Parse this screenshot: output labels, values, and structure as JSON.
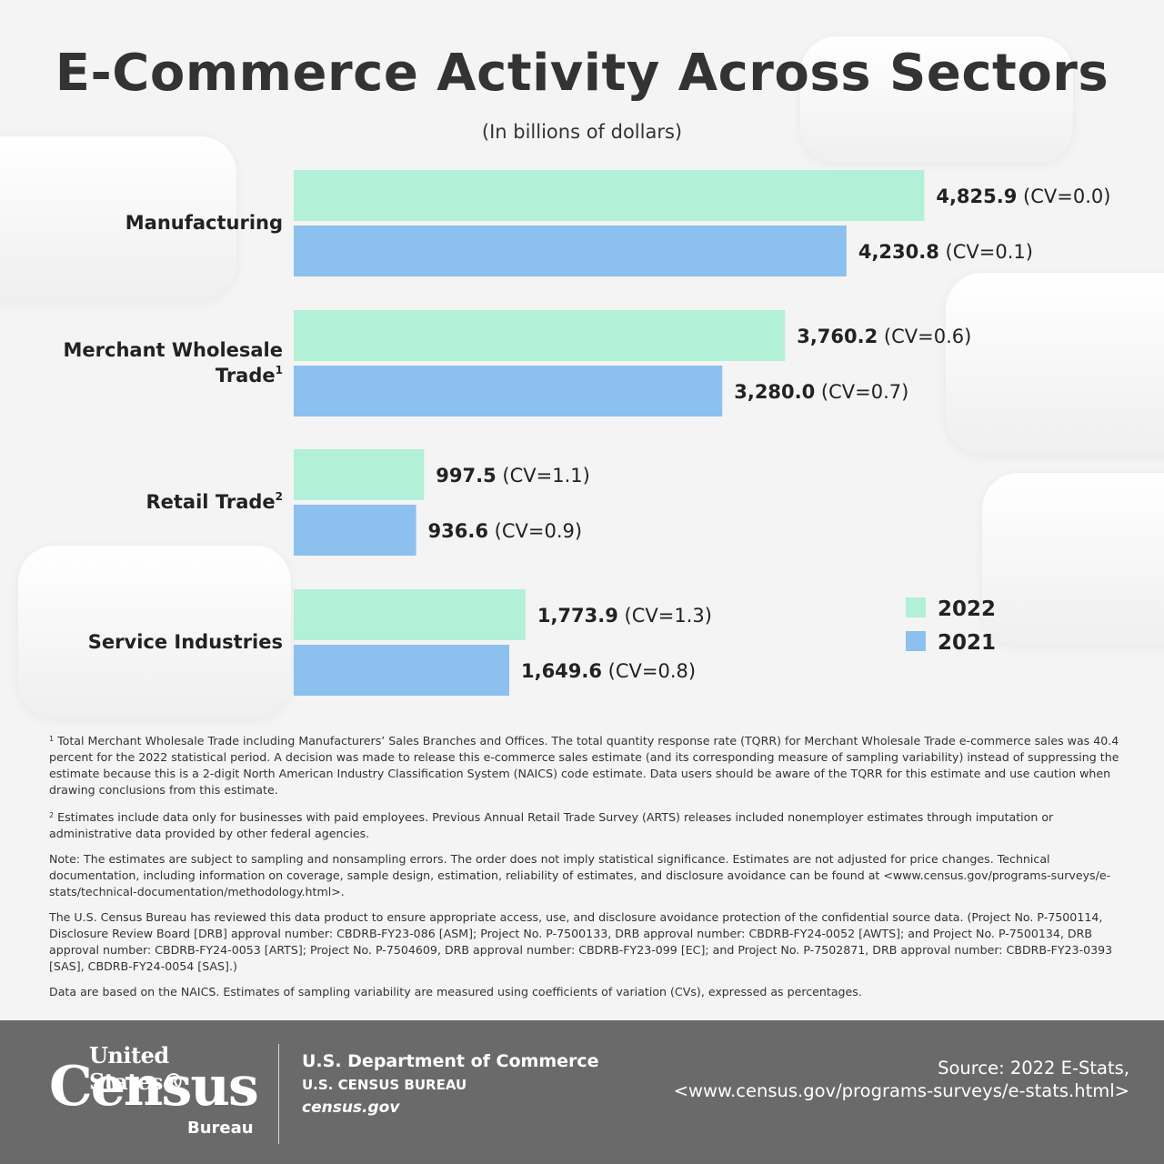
{
  "title": "E-Commerce Activity Across Sectors",
  "subtitle": "(In billions of dollars)",
  "chart_data": {
    "type": "bar",
    "orientation": "horizontal",
    "title": "E-Commerce Activity Across Sectors",
    "subtitle": "(In billions of dollars)",
    "categories": [
      "Manufacturing",
      "Merchant Wholesale Trade",
      "Retail Trade",
      "Service Industries"
    ],
    "category_lines": [
      [
        "Manufacturing"
      ],
      [
        "Merchant Wholesale",
        "Trade"
      ],
      [
        "Retail Trade"
      ],
      [
        "Service Industries"
      ]
    ],
    "category_sup": [
      "",
      "1",
      "2",
      ""
    ],
    "series": [
      {
        "name": "2022",
        "color": "#b3f0d8",
        "values": [
          4825.9,
          3760.2,
          997.5,
          1773.9
        ],
        "labels": [
          "4,825.9",
          "3,760.2",
          "997.5",
          "1,773.9"
        ],
        "cv": [
          "(CV=0.0)",
          "(CV=0.6)",
          "(CV=1.1)",
          "(CV=1.3)"
        ]
      },
      {
        "name": "2021",
        "color": "#8cc0ee",
        "values": [
          4230.8,
          3280.0,
          936.6,
          1649.6
        ],
        "labels": [
          "4,230.8",
          "3,280.0",
          "936.6",
          "1,649.6"
        ],
        "cv": [
          "(CV=0.1)",
          "(CV=0.7)",
          "(CV=0.9)",
          "(CV=0.8)"
        ]
      }
    ],
    "legend_position": "right",
    "grid": false
  },
  "notes": {
    "n1_mark": "1",
    "n1": "Total Merchant Wholesale Trade including Manufacturers’ Sales Branches and Offices. The total quantity response rate (TQRR) for Merchant Wholesale Trade e-commerce sales was 40.4 percent for the 2022 statistical period. A decision was made to release this e-commerce sales estimate (and its corresponding measure of sampling variability) instead of suppressing the estimate because this is a 2-digit North American Industry Classification System (NAICS) code estimate. Data users should be aware of the TQRR for this estimate and use caution when drawing conclusions from this estimate.",
    "n2_mark": "2",
    "n2": "Estimates include data only for businesses with paid employees. Previous Annual Retail Trade Survey (ARTS) releases included nonemployer estimates through imputation or administrative data provided by other federal agencies.",
    "n3": "Note: The estimates are subject to sampling and nonsampling errors. The order does not imply statistical significance. Estimates are not adjusted for price changes. Technical documentation, including information on coverage, sample design, estimation, reliability of estimates, and disclosure avoidance can be found at <www.census.gov/programs-surveys/e-stats/technical-documentation/methodology.html>.",
    "n4": "The U.S. Census Bureau has reviewed this data product to ensure appropriate access, use, and disclosure avoidance protection of the confidential source data. (Project No. P-7500114, Disclosure Review Board [DRB] approval number: CBDRB-FY23-086 [ASM]; Project No. P-7500133, DRB approval number: CBDRB-FY24-0052 [AWTS]; and Project No. P-7500134, DRB approval number: CBDRB-FY24-0053 [ARTS]; Project No. P-7504609, DRB approval number: CBDRB-FY23-099 [EC]; and Project No. P-7502871, DRB approval number: CBDRB-FY23-0393 [SAS], CBDRB-FY24-0054 [SAS].)",
    "n5": "Data are based on the NAICS. Estimates of sampling variability are measured using coefficients of variation (CVs), expressed as percentages."
  },
  "footer": {
    "logo_line1": "United States®",
    "logo_line2": "Census",
    "logo_line3": "Bureau",
    "dept": "U.S. Department of Commerce",
    "bureau": "U.S. CENSUS BUREAU",
    "site": "census.gov",
    "source_line1": "Source: 2022 E-Stats,",
    "source_line2": "<www.census.gov/programs-surveys/e-stats.html>"
  }
}
